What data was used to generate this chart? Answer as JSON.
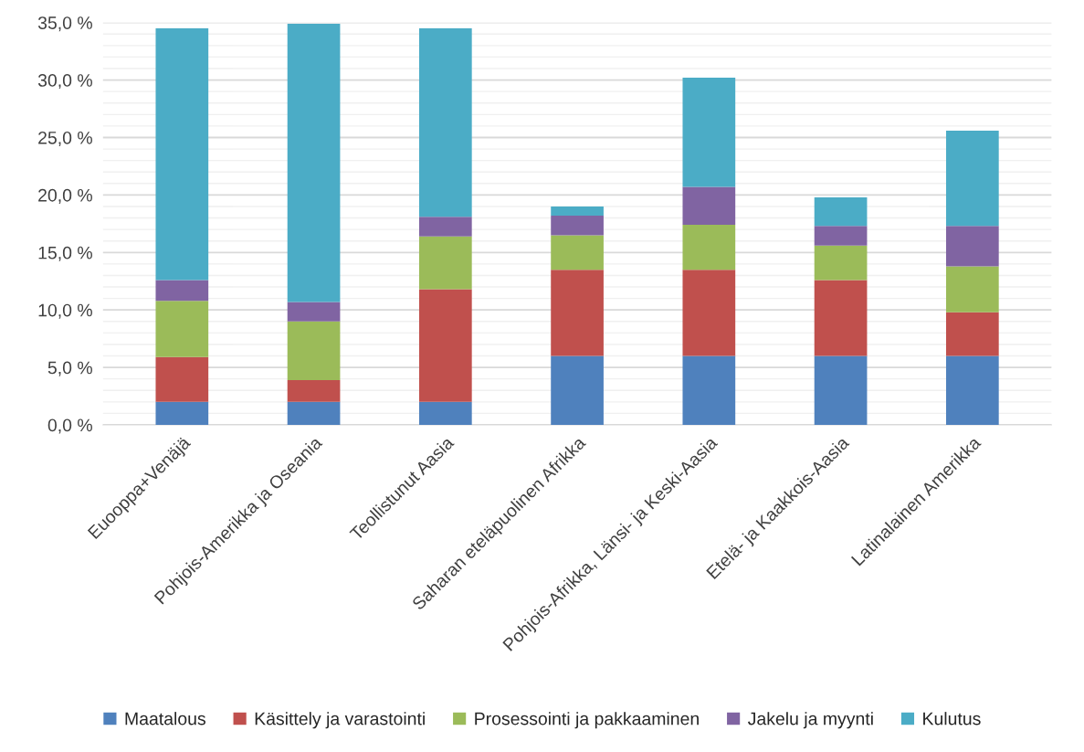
{
  "chart_data": {
    "type": "bar",
    "stacked": true,
    "categories": [
      "Euooppa+Venäjä",
      "Pohjois-Amerikka ja Oseania",
      "Teollistunut Aasia",
      "Saharan eteläpuolinen Afrikka",
      "Pohjois-Afrikka, Länsi- ja Keski-Aasia",
      "Etelä- ja Kaakkois-Aasia",
      "Latinalainen Amerikka"
    ],
    "series": [
      {
        "name": "Maatalous",
        "color": "#4f81bd",
        "values": [
          2.0,
          2.0,
          2.0,
          6.0,
          6.0,
          6.0,
          6.0
        ]
      },
      {
        "name": "Käsittely ja varastointi",
        "color": "#c0504d",
        "values": [
          3.9,
          1.9,
          9.8,
          7.5,
          7.5,
          6.6,
          3.8
        ]
      },
      {
        "name": "Prosessointi ja pakkaaminen",
        "color": "#9bbb59",
        "values": [
          4.9,
          5.1,
          4.6,
          3.0,
          3.9,
          3.0,
          4.0
        ]
      },
      {
        "name": "Jakelu ja myynti",
        "color": "#8064a2",
        "values": [
          1.8,
          1.7,
          1.7,
          1.7,
          3.3,
          1.7,
          3.5
        ]
      },
      {
        "name": "Kulutus",
        "color": "#4bacc6",
        "values": [
          21.9,
          24.2,
          16.4,
          0.8,
          9.5,
          2.5,
          8.3
        ]
      }
    ],
    "ylim": [
      0,
      35
    ],
    "yticks": [
      {
        "value": 0,
        "label": "0,0 %"
      },
      {
        "value": 1,
        "label": null
      },
      {
        "value": 2,
        "label": null
      },
      {
        "value": 3,
        "label": null
      },
      {
        "value": 4,
        "label": null
      },
      {
        "value": 5,
        "label": "5,0 %"
      },
      {
        "value": 6,
        "label": null
      },
      {
        "value": 7,
        "label": null
      },
      {
        "value": 8,
        "label": null
      },
      {
        "value": 9,
        "label": null
      },
      {
        "value": 10,
        "label": "10,0 %"
      },
      {
        "value": 11,
        "label": null
      },
      {
        "value": 12,
        "label": null
      },
      {
        "value": 13,
        "label": null
      },
      {
        "value": 14,
        "label": null
      },
      {
        "value": 15,
        "label": "15,0 %"
      },
      {
        "value": 16,
        "label": null
      },
      {
        "value": 17,
        "label": null
      },
      {
        "value": 18,
        "label": null
      },
      {
        "value": 19,
        "label": null
      },
      {
        "value": 20,
        "label": "20,0 %"
      },
      {
        "value": 21,
        "label": null
      },
      {
        "value": 22,
        "label": null
      },
      {
        "value": 23,
        "label": null
      },
      {
        "value": 24,
        "label": null
      },
      {
        "value": 25,
        "label": "25,0 %"
      },
      {
        "value": 26,
        "label": null
      },
      {
        "value": 27,
        "label": null
      },
      {
        "value": 28,
        "label": null
      },
      {
        "value": 29,
        "label": null
      },
      {
        "value": 30,
        "label": "30,0 %"
      },
      {
        "value": 31,
        "label": null
      },
      {
        "value": 32,
        "label": null
      },
      {
        "value": 33,
        "label": null
      },
      {
        "value": 34,
        "label": null
      },
      {
        "value": 35,
        "label": "35,0 %"
      }
    ],
    "grid": "y",
    "legend": "bottom"
  }
}
